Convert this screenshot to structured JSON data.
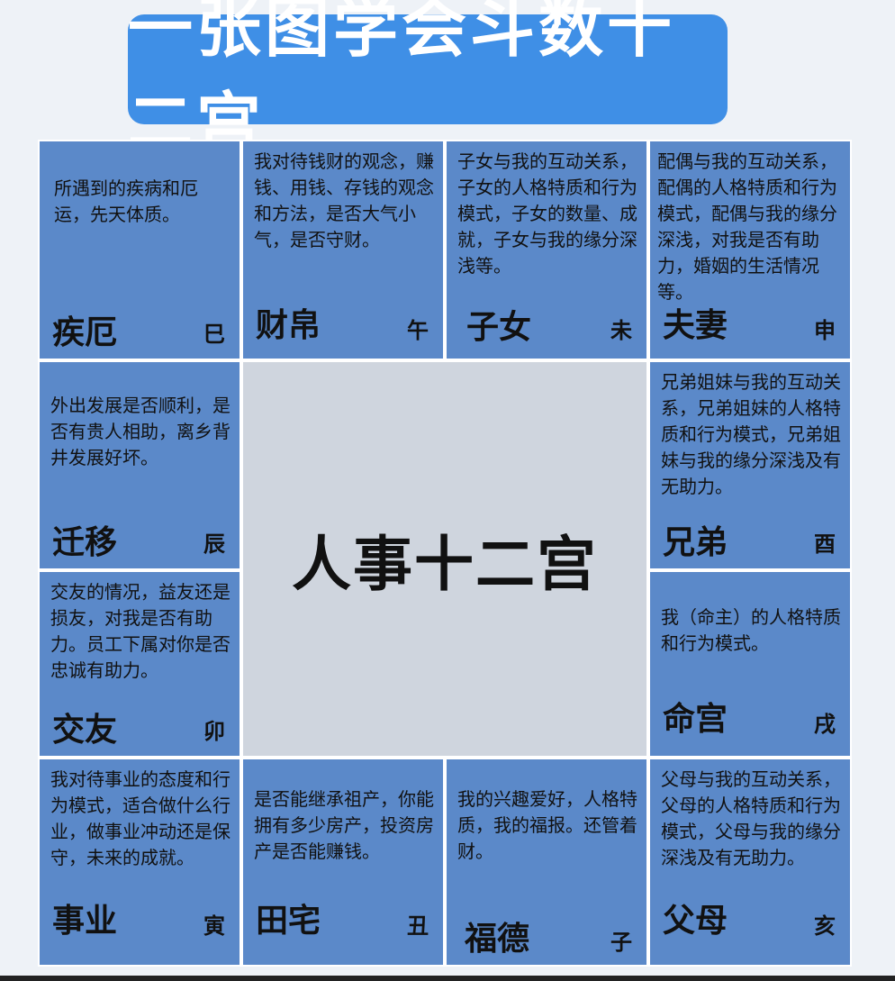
{
  "title": "一张图学会斗数十二宫",
  "center_label": "人事十二宫",
  "palaces": {
    "jie": {
      "name": "疾厄",
      "branch": "巳",
      "desc": "所遇到的疾病和厄运，先天体质。"
    },
    "cai": {
      "name": "财帛",
      "branch": "午",
      "desc": "我对待钱财的观念，赚钱、用钱、存钱的观念和方法，是否大气小气，是否守财。"
    },
    "zi": {
      "name": "子女",
      "branch": "未",
      "desc": "子女与我的互动关系，子女的人格特质和行为模式，子女的数量、成就，子女与我的缘分深浅等。"
    },
    "fu": {
      "name": "夫妻",
      "branch": "申",
      "desc": "配偶与我的互动关系，配偶的人格特质和行为模式，配偶与我的缘分深浅，对我是否有助力，婚姻的生活情况等。"
    },
    "qian": {
      "name": "迁移",
      "branch": "辰",
      "desc": "外出发展是否顺利，是否有贵人相助，离乡背井发展好坏。"
    },
    "xiong": {
      "name": "兄弟",
      "branch": "酉",
      "desc": "兄弟姐妹与我的互动关系，兄弟姐妹的人格特质和行为模式，兄弟姐妹与我的缘分深浅及有无助力。"
    },
    "jiao": {
      "name": "交友",
      "branch": "卯",
      "desc": "交友的情况，益友还是损友，对我是否有助力。员工下属对你是否忠诚有助力。"
    },
    "ming": {
      "name": "命宫",
      "branch": "戌",
      "desc": "我（命主）的人格特质和行为模式。"
    },
    "shi": {
      "name": "事业",
      "branch": "寅",
      "desc": "我对待事业的态度和行为模式，适合做什么行业，做事业冲动还是保守，未来的成就。"
    },
    "tian": {
      "name": "田宅",
      "branch": "丑",
      "desc": "是否能继承祖产，你能拥有多少房产，投资房产是否能赚钱。"
    },
    "fude": {
      "name": "福德",
      "branch": "子",
      "desc": "我的兴趣爱好，人格特质，我的福报。还管着财。"
    },
    "fumu": {
      "name": "父母",
      "branch": "亥",
      "desc": "父母与我的互动关系，父母的人格特质和行为模式，父母与我的缘分深浅及有无助力。"
    }
  },
  "colors": {
    "banner": "#3f8fe6",
    "cell": "#5b89c9",
    "center": "#cfd5de"
  }
}
